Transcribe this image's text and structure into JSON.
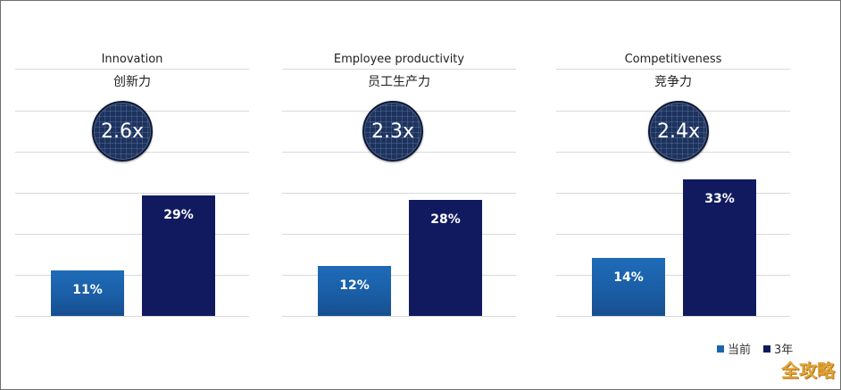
{
  "chart_data": {
    "type": "bar",
    "unit": "%",
    "series": [
      {
        "name": "当前",
        "color": "#1a64b0"
      },
      {
        "name": "3年",
        "color": "#111a5e"
      }
    ],
    "ylim": [
      0,
      60
    ],
    "grid": true,
    "legend_position": "bottom-right",
    "panels": [
      {
        "title_en": "Innovation",
        "title_cn": "创新力",
        "multiplier": "2.6x",
        "values": [
          11,
          29
        ],
        "labels": [
          "11%",
          "29%"
        ]
      },
      {
        "title_en": "Employee productivity",
        "title_cn": "员工生产力",
        "multiplier": "2.3x",
        "values": [
          12,
          28
        ],
        "labels": [
          "12%",
          "28%"
        ]
      },
      {
        "title_en": "Competitiveness",
        "title_cn": "竞争力",
        "multiplier": "2.4x",
        "values": [
          14,
          33
        ],
        "labels": [
          "14%",
          "33%"
        ]
      }
    ]
  },
  "legend": {
    "current_label": "当前",
    "year3_label": "3年"
  },
  "watermark": "全攻略"
}
